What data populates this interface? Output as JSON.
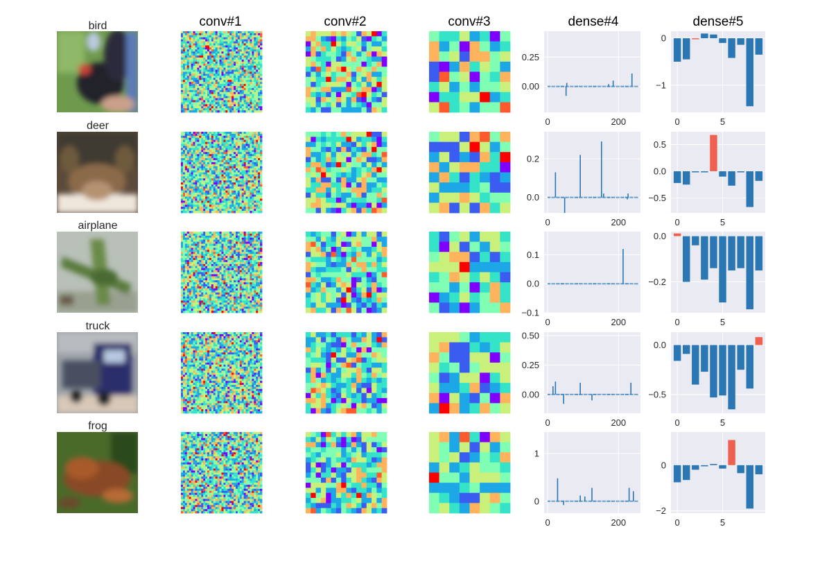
{
  "figure": {
    "column_titles": [
      "conv#1",
      "conv#2",
      "conv#3",
      "dense#4",
      "dense#5"
    ],
    "rows": [
      {
        "label": "bird",
        "image": "bird-photo"
      },
      {
        "label": "deer",
        "image": "deer-photo"
      },
      {
        "label": "airplane",
        "image": "airplane-photo"
      },
      {
        "label": "truck",
        "image": "truck-photo"
      },
      {
        "label": "frog",
        "image": "frog-photo"
      }
    ]
  },
  "colors": {
    "bar": "#2a77b4",
    "highlight": "#f06050",
    "panel_bg": "#eaeaf2",
    "grid": "#ffffff",
    "heatmap_palette": [
      "#7f00ff",
      "#3a5cf0",
      "#1ea7e6",
      "#35e4c8",
      "#80ffb4",
      "#c8f07a",
      "#ffb35c",
      "#ff5a2e",
      "#ff0000"
    ]
  },
  "chart_data": [
    {
      "type": "bar",
      "title": "dense#4",
      "row": "bird",
      "xlim": [
        -10,
        262
      ],
      "ylim": [
        -0.22,
        0.47
      ],
      "xticks": [
        0,
        200
      ],
      "yticks": [
        0.0,
        0.25
      ],
      "spikes": [
        [
          52,
          -0.08
        ],
        [
          54,
          0.03
        ],
        [
          172,
          0.02
        ],
        [
          185,
          0.05
        ],
        [
          238,
          0.11
        ]
      ]
    },
    {
      "type": "bar",
      "title": "dense#5",
      "row": "bird",
      "xlim": [
        -0.7,
        9.7
      ],
      "ylim": [
        -1.58,
        0.15
      ],
      "xticks": [
        0,
        5
      ],
      "yticks": [
        -1,
        0
      ],
      "values": [
        -0.5,
        -0.45,
        -0.02,
        0.1,
        0.08,
        -0.1,
        -0.42,
        -0.14,
        -1.45,
        -0.35
      ],
      "highlight": 2
    },
    {
      "type": "bar",
      "title": "dense#4",
      "row": "deer",
      "xlim": [
        -10,
        262
      ],
      "ylim": [
        -0.08,
        0.34
      ],
      "xticks": [
        0,
        200
      ],
      "yticks": [
        0.0,
        0.2
      ],
      "spikes": [
        [
          22,
          0.13
        ],
        [
          48,
          -0.08
        ],
        [
          92,
          0.22
        ],
        [
          152,
          0.29
        ],
        [
          158,
          0.02
        ],
        [
          225,
          -0.01
        ],
        [
          227,
          0.02
        ]
      ]
    },
    {
      "type": "bar",
      "title": "dense#5",
      "row": "deer",
      "xlim": [
        -0.7,
        9.7
      ],
      "ylim": [
        -0.78,
        0.74
      ],
      "xticks": [
        0,
        5
      ],
      "yticks": [
        -0.5,
        0.0,
        0.5
      ],
      "values": [
        -0.22,
        -0.25,
        -0.02,
        -0.02,
        0.68,
        -0.1,
        -0.27,
        -0.02,
        -0.67,
        -0.18
      ],
      "highlight": 4
    },
    {
      "type": "bar",
      "title": "dense#4",
      "row": "airplane",
      "xlim": [
        -10,
        262
      ],
      "ylim": [
        -0.1,
        0.18
      ],
      "xticks": [
        0,
        200
      ],
      "yticks": [
        -0.1,
        0.0,
        0.1
      ],
      "spikes": [
        [
          213,
          0.12
        ]
      ]
    },
    {
      "type": "bar",
      "title": "dense#5",
      "row": "airplane",
      "xlim": [
        -0.7,
        9.7
      ],
      "ylim": [
        -0.335,
        0.02
      ],
      "xticks": [
        0,
        5
      ],
      "yticks": [
        -0.2,
        0.0
      ],
      "values": [
        0.012,
        -0.2,
        -0.04,
        -0.19,
        -0.14,
        -0.29,
        -0.15,
        -0.14,
        -0.32,
        -0.15
      ],
      "highlight": 0
    },
    {
      "type": "bar",
      "title": "dense#4",
      "row": "truck",
      "xlim": [
        -10,
        262
      ],
      "ylim": [
        -0.16,
        0.53
      ],
      "xticks": [
        0,
        200
      ],
      "yticks": [
        0.0,
        0.25,
        0.5
      ],
      "spikes": [
        [
          15,
          0.07
        ],
        [
          22,
          0.11
        ],
        [
          45,
          -0.08
        ],
        [
          92,
          0.1
        ],
        [
          125,
          -0.05
        ],
        [
          235,
          0.1
        ]
      ]
    },
    {
      "type": "bar",
      "title": "dense#5",
      "row": "truck",
      "xlim": [
        -0.7,
        9.7
      ],
      "ylim": [
        -0.69,
        0.13
      ],
      "xticks": [
        0,
        5
      ],
      "yticks": [
        -0.5,
        0.0
      ],
      "values": [
        -0.16,
        -0.09,
        -0.4,
        -0.27,
        -0.53,
        -0.51,
        -0.65,
        -0.25,
        -0.44,
        0.08
      ],
      "highlight": 9
    },
    {
      "type": "bar",
      "title": "dense#4",
      "row": "frog",
      "xlim": [
        -10,
        262
      ],
      "ylim": [
        -0.25,
        1.45
      ],
      "xticks": [
        0,
        200
      ],
      "yticks": [
        0,
        1
      ],
      "spikes": [
        [
          28,
          0.48
        ],
        [
          45,
          -0.08
        ],
        [
          92,
          0.12
        ],
        [
          105,
          0.1
        ],
        [
          125,
          0.28
        ],
        [
          230,
          0.28
        ],
        [
          242,
          0.21
        ]
      ]
    },
    {
      "type": "bar",
      "title": "dense#5",
      "row": "frog",
      "xlim": [
        -0.7,
        9.7
      ],
      "ylim": [
        -2.1,
        1.45
      ],
      "xticks": [
        0,
        5
      ],
      "yticks": [
        -2,
        0
      ],
      "values": [
        -0.75,
        -0.65,
        -0.2,
        -0.05,
        0.05,
        -0.15,
        1.1,
        -0.35,
        -1.9,
        -0.4
      ],
      "highlight": 6
    }
  ]
}
